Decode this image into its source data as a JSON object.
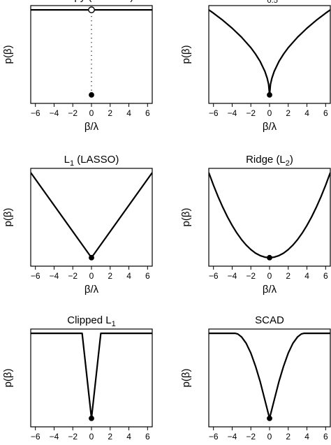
{
  "chart_data": [
    {
      "type": "line",
      "title": "Entropy (Discrete)",
      "xlabel": "β/λ",
      "ylabel": "p(β)",
      "xlim": [
        -6.5,
        6.5
      ],
      "ylim": [
        -0.1,
        1.05
      ],
      "xticks": [
        "−6",
        "−4",
        "−2",
        "0",
        "2",
        "4",
        "6"
      ],
      "series": [
        {
          "x": [
            -6.5,
            6.5
          ],
          "y": [
            1,
            1
          ]
        }
      ],
      "open_point": {
        "x": 0,
        "y": 1
      },
      "filled_point": {
        "x": 0,
        "y": 0
      },
      "dotted_segment": {
        "x": 0,
        "y_from": 0,
        "y_to": 1
      }
    },
    {
      "type": "line",
      "title": "L",
      "title_sub": "0.5",
      "xlabel": "β/λ",
      "ylabel": "p(β)",
      "xlim": [
        -6.5,
        6.5
      ],
      "ylim": [
        -0.1,
        1.05
      ],
      "xticks": [
        "−6",
        "−4",
        "−2",
        "0",
        "2",
        "4",
        "6"
      ],
      "series": [
        {
          "x": [
            -6.5,
            -6,
            -5,
            -4,
            -3,
            -2,
            -1.5,
            -1,
            -0.5,
            -0.25,
            -0.1,
            0,
            0.1,
            0.25,
            0.5,
            1,
            1.5,
            2,
            3,
            4,
            5,
            6,
            6.5
          ],
          "y": [
            1.0,
            0.961,
            0.877,
            0.784,
            0.679,
            0.555,
            0.48,
            0.392,
            0.277,
            0.196,
            0.124,
            0.0,
            0.124,
            0.196,
            0.277,
            0.392,
            0.48,
            0.555,
            0.679,
            0.784,
            0.877,
            0.961,
            1.0
          ]
        }
      ],
      "filled_point": {
        "x": 0,
        "y": 0
      }
    },
    {
      "type": "line",
      "title": "L",
      "title_sub": "1",
      "title_suffix": " (LASSO)",
      "xlabel": "β/λ",
      "ylabel": "p(β)",
      "xlim": [
        -6.5,
        6.5
      ],
      "ylim": [
        -0.1,
        1.05
      ],
      "xticks": [
        "−6",
        "−4",
        "−2",
        "0",
        "2",
        "4",
        "6"
      ],
      "series": [
        {
          "x": [
            -6.5,
            0,
            6.5
          ],
          "y": [
            1.0,
            0.0,
            1.0
          ]
        }
      ],
      "filled_point": {
        "x": 0,
        "y": 0
      }
    },
    {
      "type": "line",
      "title": "Ridge (L",
      "title_sub": "2",
      "title_suffix": ")",
      "xlabel": "β/λ",
      "ylabel": "p(β)",
      "xlim": [
        -6.5,
        6.5
      ],
      "ylim": [
        -0.1,
        1.05
      ],
      "xticks": [
        "−6",
        "−4",
        "−2",
        "0",
        "2",
        "4",
        "6"
      ],
      "series": [
        {
          "x": [
            -6.5,
            -6,
            -5.5,
            -5,
            -4.5,
            -4,
            -3.5,
            -3,
            -2.5,
            -2,
            -1.5,
            -1,
            -0.5,
            0,
            0.5,
            1,
            1.5,
            2,
            2.5,
            3,
            3.5,
            4,
            4.5,
            5,
            5.5,
            6,
            6.5
          ],
          "y": [
            1.0,
            0.852,
            0.716,
            0.592,
            0.479,
            0.379,
            0.29,
            0.213,
            0.148,
            0.095,
            0.053,
            0.024,
            0.006,
            0.0,
            0.006,
            0.024,
            0.053,
            0.095,
            0.148,
            0.213,
            0.29,
            0.379,
            0.479,
            0.592,
            0.716,
            0.852,
            1.0
          ]
        }
      ],
      "filled_point": {
        "x": 0,
        "y": 0
      }
    },
    {
      "type": "line",
      "title": "Clipped L",
      "title_sub": "1",
      "xlabel": "β/λ",
      "ylabel": "p(β)",
      "xlim": [
        -6.5,
        6.5
      ],
      "ylim": [
        -0.1,
        1.05
      ],
      "xticks": [
        "−6",
        "−4",
        "−2",
        "0",
        "2",
        "4",
        "6"
      ],
      "series": [
        {
          "x": [
            -6.5,
            -1,
            0,
            1,
            6.5
          ],
          "y": [
            1.0,
            1.0,
            0.0,
            1.0,
            1.0
          ]
        }
      ],
      "filled_point": {
        "x": 0,
        "y": 0
      }
    },
    {
      "type": "line",
      "title": "SCAD",
      "xlabel": "β/λ",
      "ylabel": "p(β)",
      "xlim": [
        -6.5,
        6.5
      ],
      "ylim": [
        -0.1,
        1.05
      ],
      "xticks": [
        "−6",
        "−4",
        "−2",
        "0",
        "2",
        "4",
        "6"
      ],
      "series": [
        {
          "x": [
            -6.5,
            -3.7,
            -3.4,
            -3.0,
            -2.5,
            -2.0,
            -1.5,
            -1.0,
            -0.5,
            0,
            0.5,
            1.0,
            1.5,
            2.0,
            2.5,
            3.0,
            3.4,
            3.7,
            6.5
          ],
          "y": [
            1.0,
            1.0,
            0.992,
            0.958,
            0.882,
            0.767,
            0.613,
            0.43,
            0.215,
            0.0,
            0.215,
            0.43,
            0.613,
            0.767,
            0.882,
            0.958,
            0.992,
            1.0,
            1.0
          ]
        }
      ],
      "filled_point": {
        "x": 0,
        "y": 0
      }
    }
  ]
}
